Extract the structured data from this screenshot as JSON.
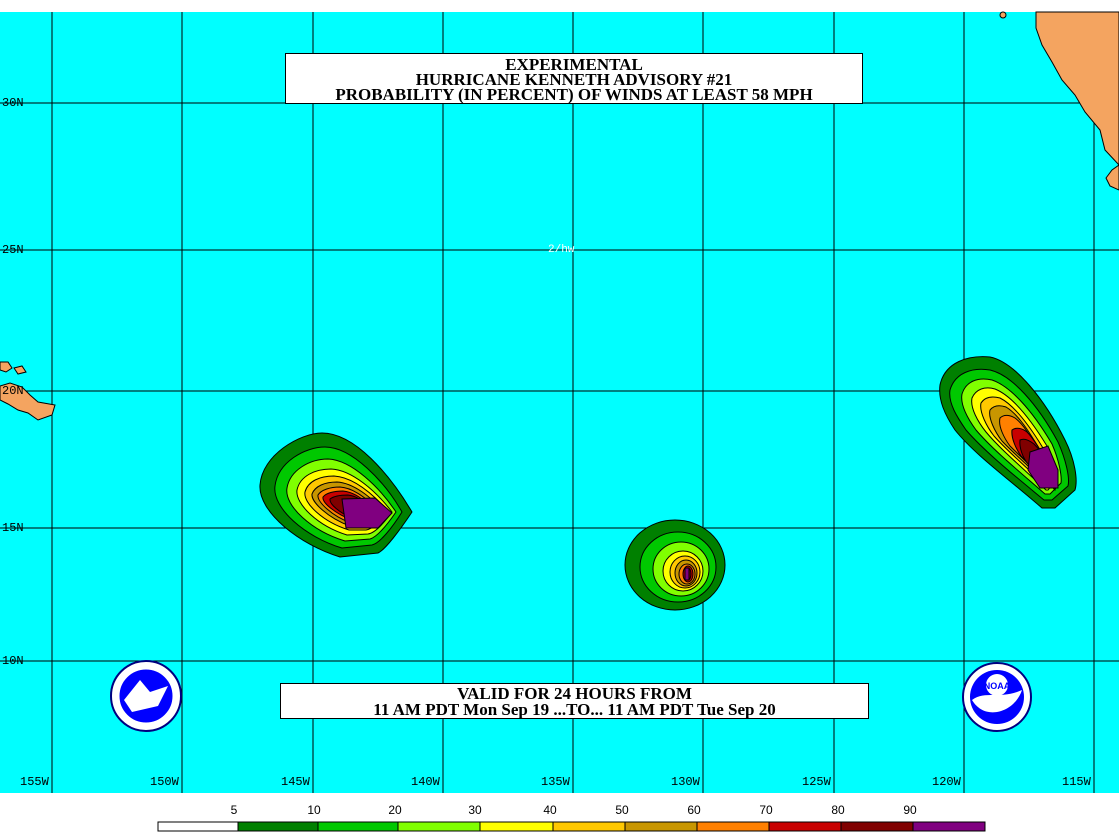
{
  "title": {
    "line1": "EXPERIMENTAL",
    "line2": "HURRICANE KENNETH ADVISORY #21",
    "line3": "PROBABILITY (IN PERCENT) OF WINDS AT LEAST 58 MPH"
  },
  "valid": {
    "line1": "VALID FOR 24 HOURS FROM",
    "line2": "11 AM PDT Mon Sep 19 ...TO... 11 AM PDT Tue Sep 20"
  },
  "center_note": "2/hw",
  "latitudes": [
    "30N",
    "25N",
    "20N",
    "15N",
    "10N"
  ],
  "longitudes": [
    "155W",
    "150W",
    "145W",
    "140W",
    "135W",
    "130W",
    "125W",
    "120W",
    "115W"
  ],
  "legend": {
    "labels": [
      "5",
      "10",
      "20",
      "30",
      "40",
      "50",
      "60",
      "70",
      "80",
      "90"
    ],
    "colors": [
      "#ffffff",
      "#008000",
      "#00c800",
      "#80ff00",
      "#ffff00",
      "#ffc800",
      "#c89600",
      "#ff8000",
      "#c80000",
      "#800000",
      "#800080"
    ]
  },
  "colors": {
    "ocean": "#00ffff",
    "land": "#f4a460",
    "grid": "#000000"
  },
  "logos": [
    "nws-logo",
    "noaa-logo"
  ]
}
